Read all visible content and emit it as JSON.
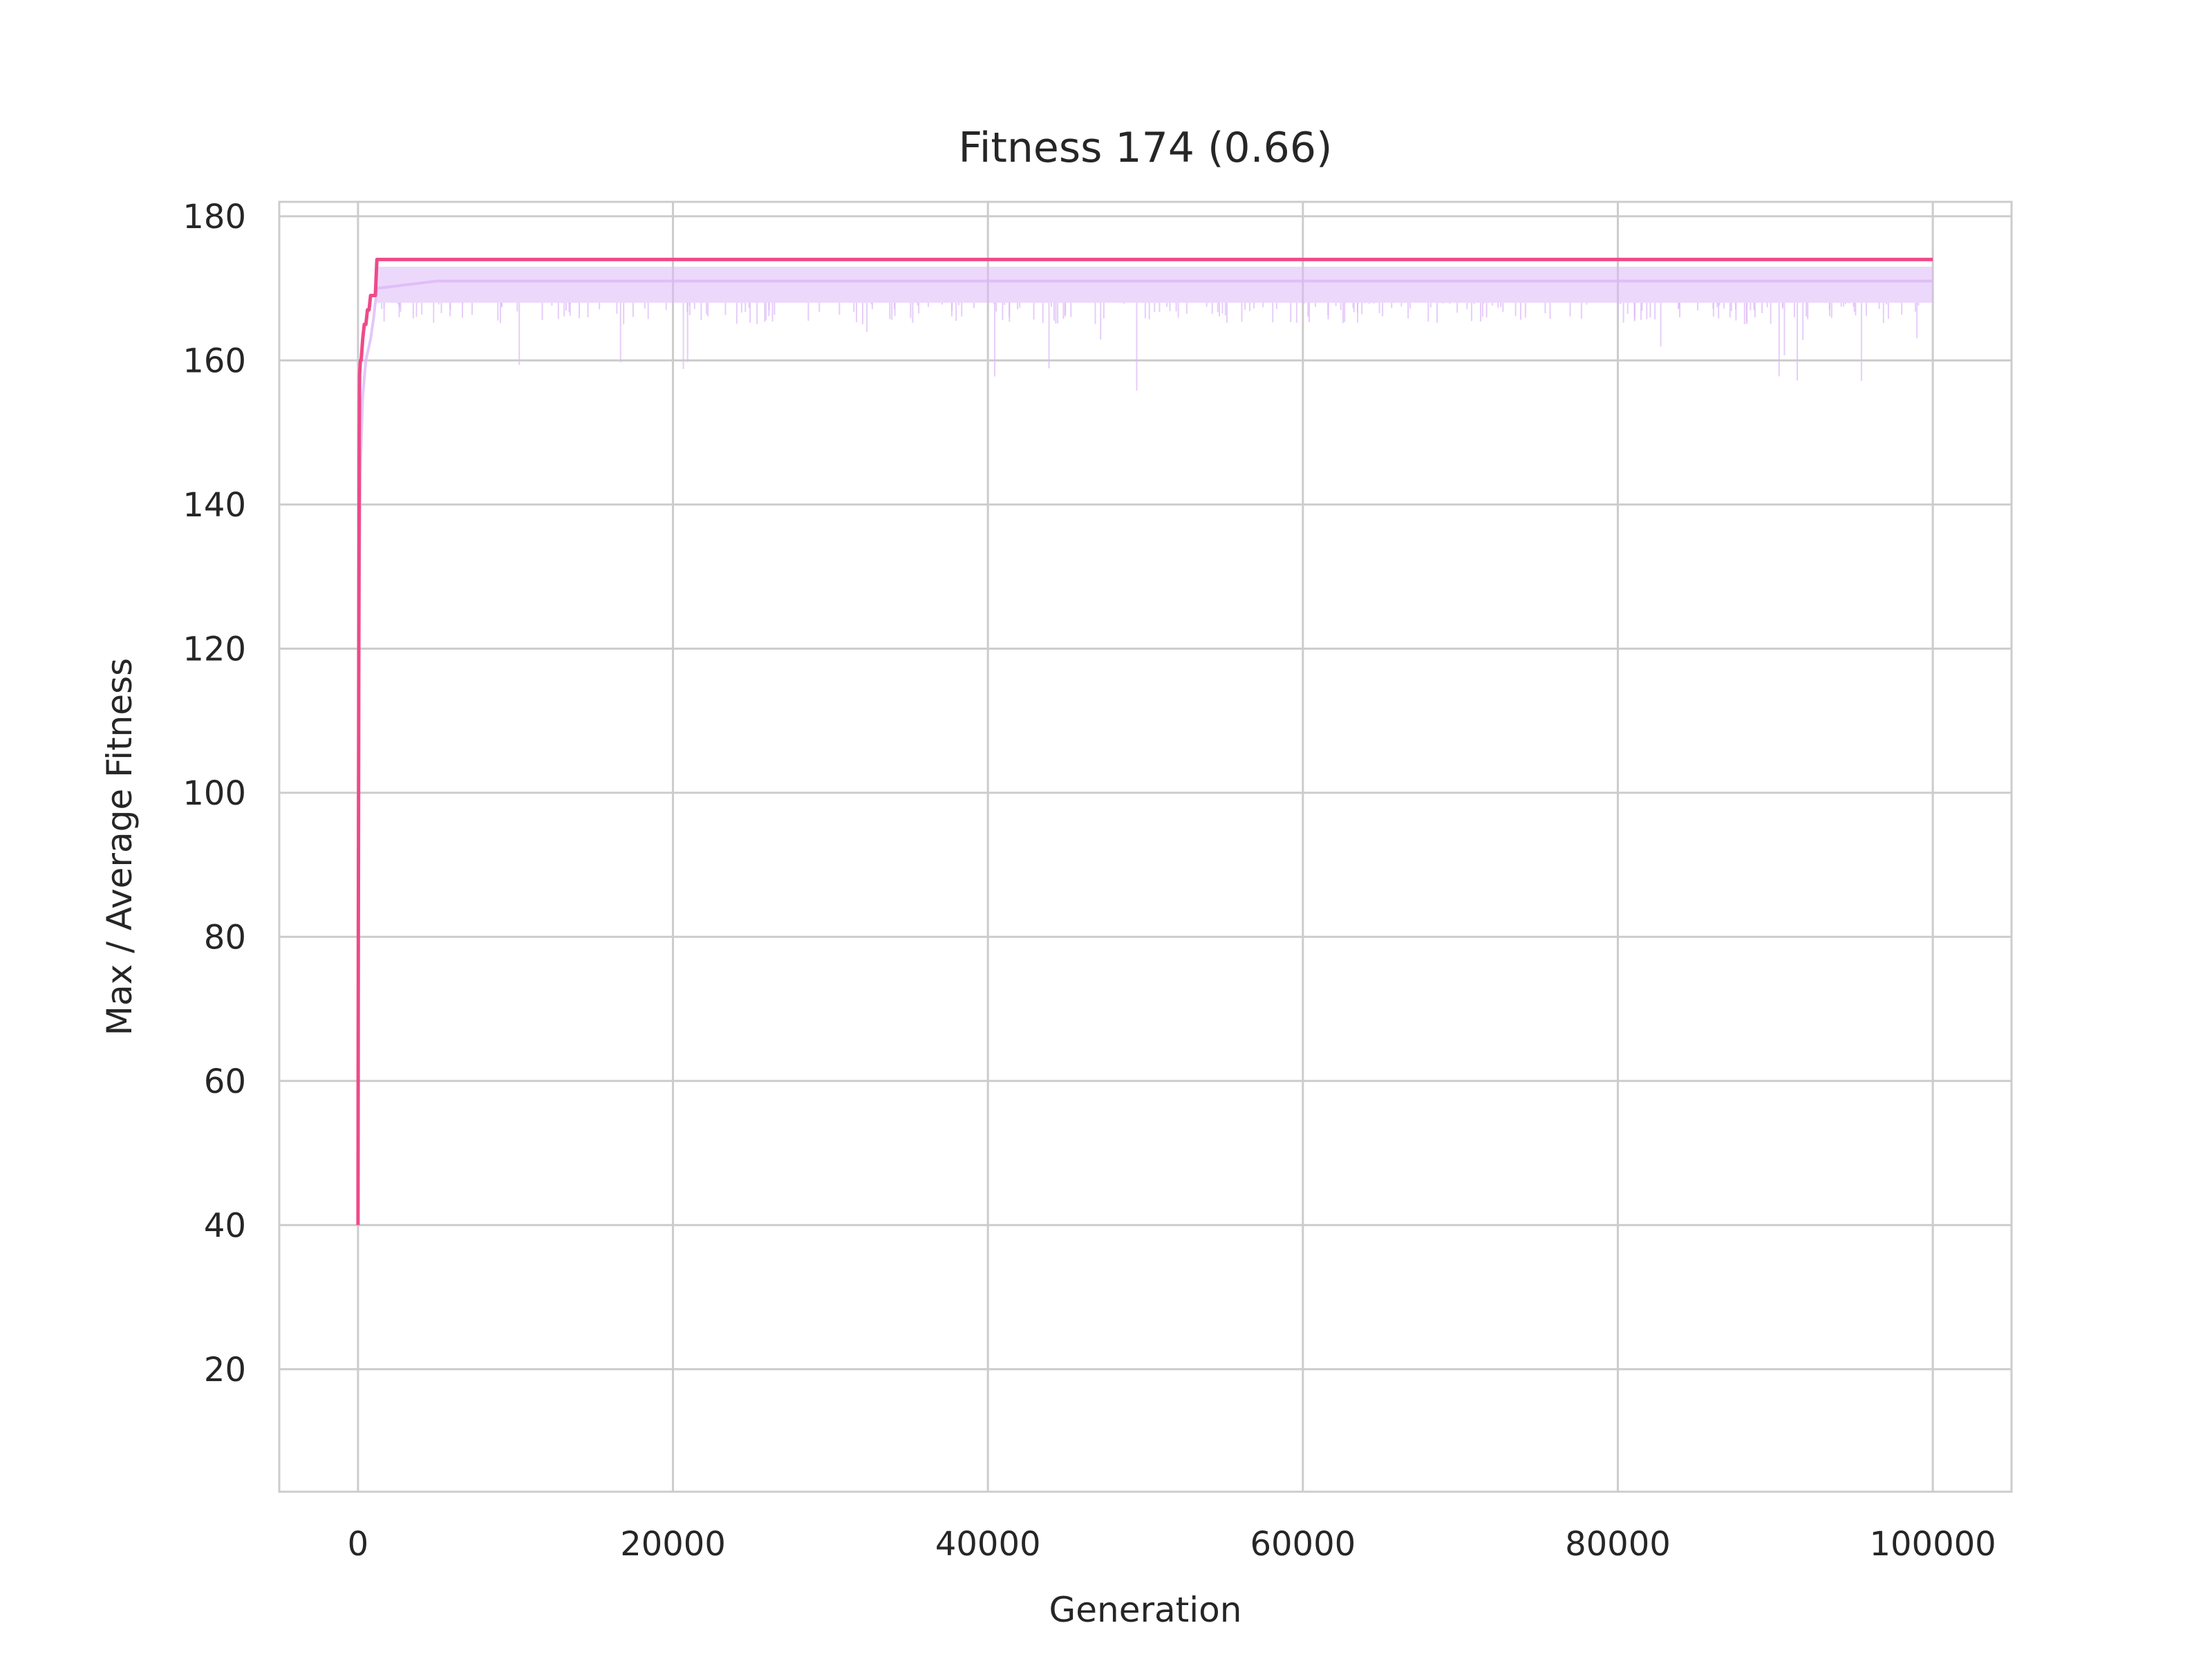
{
  "chart_data": {
    "type": "line",
    "title": "Fitness 174 (0.66)",
    "xlabel": "Generation",
    "ylabel": "Max / Average Fitness",
    "xlim": [
      -5000,
      105000
    ],
    "ylim": [
      3,
      182
    ],
    "xticks": [
      0,
      20000,
      40000,
      60000,
      80000,
      100000
    ],
    "xtick_labels": [
      "0",
      "20000",
      "40000",
      "60000",
      "80000",
      "100000"
    ],
    "yticks": [
      20,
      40,
      60,
      80,
      100,
      120,
      140,
      160,
      180
    ],
    "ytick_labels": [
      "20",
      "40",
      "60",
      "80",
      "100",
      "120",
      "140",
      "160",
      "180"
    ],
    "grid": true,
    "legend": "none",
    "series": [
      {
        "role": "max",
        "color": "#ee4a8a",
        "x": [
          0,
          20,
          50,
          80,
          100,
          150,
          200,
          300,
          400,
          500,
          600,
          700,
          800,
          900,
          1000,
          1100,
          1200,
          100000
        ],
        "y": [
          40,
          80,
          120,
          150,
          158,
          160,
          160,
          163,
          165,
          165,
          167,
          167,
          169,
          169,
          169,
          169,
          174,
          174
        ]
      },
      {
        "role": "average",
        "color": "#dcb8f7",
        "x": [
          0,
          30,
          80,
          150,
          300,
          500,
          800,
          1000,
          1200,
          5000,
          20000,
          40000,
          60000,
          80000,
          100000
        ],
        "y": [
          55,
          90,
          125,
          145,
          155,
          160,
          163,
          166,
          170,
          171,
          171,
          171,
          171,
          171,
          171
        ],
        "band_low": 168,
        "band_high": 174
      }
    ]
  }
}
